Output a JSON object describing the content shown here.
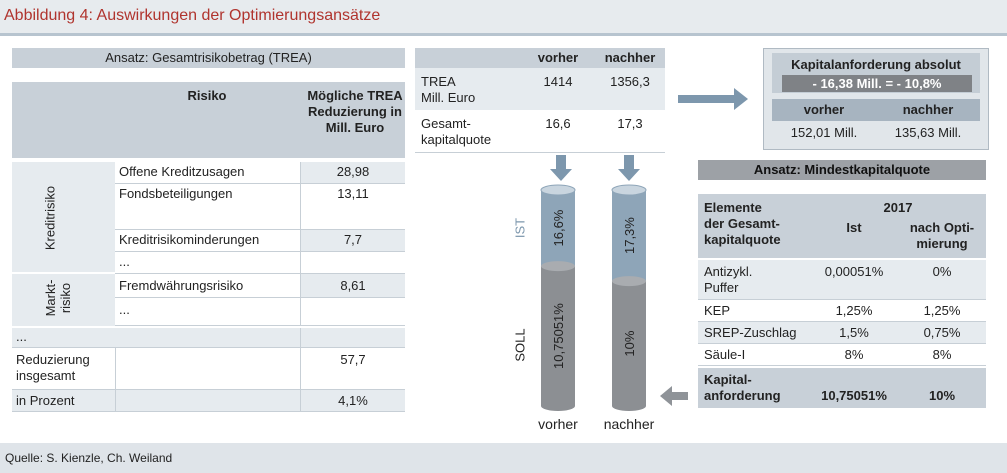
{
  "header": {
    "title": "Abbildung 4: Auswirkungen der Optimierungsansätze"
  },
  "footer": {
    "source": "Quelle: S. Kienzle, Ch. Weiland"
  },
  "left": {
    "title": "Ansatz: Gesamtrisikobetrag (TREA)",
    "col_risk": "Risiko",
    "col_reduction": "Mögliche TREA Reduzierung in Mill. Euro",
    "group1": "Kreditrisiko",
    "group2": "Markt-risiko",
    "rows": [
      {
        "label": "Offene Kreditzusagen",
        "value": "28,98"
      },
      {
        "label": "Fondsbeteiligungen",
        "value": "13,11"
      },
      {
        "label": "Kreditrisikominderungen",
        "value": "7,7"
      },
      {
        "label": "...",
        "value": ""
      },
      {
        "label": "Fremdwährungsrisiko",
        "value": "8,61"
      },
      {
        "label": "...",
        "value": ""
      }
    ],
    "dots": "...",
    "total_label": "Reduzierung insgesamt",
    "total_value": "57,7",
    "percent_label": "in Prozent",
    "percent_value": "4,1%"
  },
  "middle": {
    "col_before": "vorher",
    "col_after": "nachher",
    "rows": [
      {
        "label": "TREA Mill. Euro",
        "before": "1414",
        "after": "1356,3"
      },
      {
        "label": "Gesamt-kapitalquote",
        "before": "16,6",
        "after": "17,3"
      }
    ]
  },
  "cylinders": {
    "ist_label": "IST",
    "soll_label": "SOLL",
    "before": {
      "label": "vorher",
      "ist": "16,6%",
      "soll": "10,75051%",
      "ist_value": 16.6,
      "soll_value": 10.75051
    },
    "after": {
      "label": "nachher",
      "ist": "17,3%",
      "soll": "10%",
      "ist_value": 17.3,
      "soll_value": 10
    }
  },
  "capital": {
    "title": "Kapitalanforderung absolut",
    "delta": "- 16,38 Mill. = - 10,8%",
    "col_before": "vorher",
    "col_after": "nachher",
    "before": "152,01 Mill.",
    "after": "135,63 Mill."
  },
  "right": {
    "title": "Ansatz: Mindestkapitalquote",
    "col_elements": "Elemente der Gesamt-kapitalquote",
    "col_year": "2017",
    "col_ist": "Ist",
    "col_opt": "nach Opti-mierung",
    "rows": [
      {
        "label": "Antizykl. Puffer",
        "ist": "0,00051%",
        "opt": "0%"
      },
      {
        "label": "KEP",
        "ist": "1,25%",
        "opt": "1,25%"
      },
      {
        "label": "SREP-Zuschlag",
        "ist": "1,5%",
        "opt": "0,75%"
      },
      {
        "label": "Säule-I",
        "ist": "8%",
        "opt": "8%"
      }
    ],
    "total_label": "Kapital-anforderung",
    "total_ist": "10,75051%",
    "total_opt": "10%"
  }
}
